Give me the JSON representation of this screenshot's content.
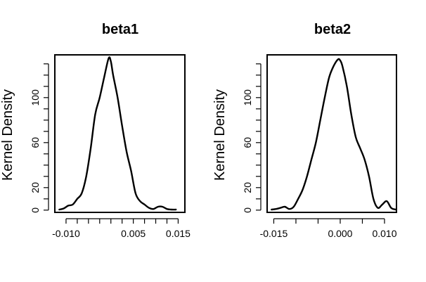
{
  "chart_data": [
    {
      "type": "line",
      "title": "beta1",
      "xlabel": "",
      "ylabel": "Kernel Density",
      "xlim": [
        -0.0125,
        0.0165
      ],
      "ylim": [
        -2,
        138
      ],
      "x_ticks": [
        -0.01,
        -0.0075,
        -0.005,
        -0.0025,
        0.0,
        0.0025,
        0.005,
        0.0075,
        0.01,
        0.0125,
        0.015
      ],
      "x_tick_labels": [
        "-0.010",
        "",
        "",
        "",
        "",
        "",
        "0.005",
        "",
        "",
        "",
        "0.015"
      ],
      "y_ticks": [
        0,
        10,
        20,
        30,
        40,
        50,
        60,
        70,
        80,
        90,
        100,
        110,
        120,
        130
      ],
      "y_tick_labels": [
        "0",
        "",
        "20",
        "",
        "",
        "",
        "60",
        "",
        "",
        "",
        "100",
        "",
        "",
        ""
      ],
      "grid": false,
      "series": [
        {
          "x": [
            -0.0115,
            -0.0105,
            -0.0095,
            -0.0085,
            -0.0075,
            -0.0065,
            -0.0055,
            -0.0045,
            -0.0035,
            -0.0025,
            -0.0015,
            -0.0005,
            0.0,
            0.0005,
            0.0015,
            0.0025,
            0.0035,
            0.0045,
            0.0055,
            0.0065,
            0.0075,
            0.0085,
            0.0095,
            0.0105,
            0.0115,
            0.0125,
            0.0135,
            0.0145
          ],
          "y": [
            0.5,
            1.5,
            4,
            5,
            10,
            15,
            30,
            55,
            85,
            100,
            118,
            135,
            132,
            120,
            100,
            75,
            52,
            35,
            15,
            8,
            5,
            2,
            1,
            3,
            3,
            1,
            0.5,
            0.5
          ]
        }
      ]
    },
    {
      "type": "line",
      "title": "beta2",
      "xlabel": "",
      "ylabel": "Kernel Density",
      "xlim": [
        -0.0165,
        0.0127
      ],
      "ylim": [
        -2,
        138
      ],
      "x_ticks": [
        -0.015,
        -0.01,
        -0.005,
        0.0,
        0.005,
        0.01
      ],
      "x_tick_labels": [
        "-0.015",
        "",
        "",
        "0.000",
        "",
        "0.010"
      ],
      "y_ticks": [
        0,
        10,
        20,
        30,
        40,
        50,
        60,
        70,
        80,
        90,
        100,
        110,
        120,
        130
      ],
      "y_tick_labels": [
        "0",
        "",
        "20",
        "",
        "",
        "",
        "60",
        "",
        "",
        "",
        "100",
        "",
        "",
        ""
      ],
      "grid": false,
      "series": [
        {
          "x": [
            -0.0155,
            -0.0145,
            -0.0135,
            -0.0125,
            -0.0115,
            -0.0105,
            -0.0095,
            -0.0085,
            -0.0075,
            -0.0065,
            -0.0055,
            -0.0045,
            -0.0035,
            -0.0025,
            -0.0015,
            -0.0005,
            0.0,
            0.0005,
            0.0015,
            0.0025,
            0.0035,
            0.0045,
            0.0055,
            0.0065,
            0.0075,
            0.0085,
            0.0095,
            0.0105,
            0.0115,
            0.0125
          ],
          "y": [
            0.5,
            1,
            2,
            3,
            1,
            3,
            10,
            18,
            30,
            45,
            60,
            80,
            100,
            118,
            128,
            134,
            133,
            128,
            110,
            85,
            65,
            55,
            45,
            30,
            10,
            2,
            5,
            8,
            2,
            0.5
          ]
        }
      ]
    }
  ]
}
